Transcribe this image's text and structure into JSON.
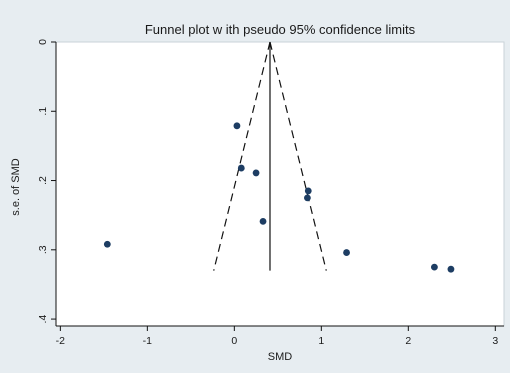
{
  "chart_data": {
    "type": "scatter",
    "title": "Funnel plot w ith pseudo 95% confidence limits",
    "xlabel": "SMD",
    "ylabel": "s.e. of SMD",
    "xlim": [
      -2.05,
      3.1
    ],
    "ylim": [
      0,
      0.41
    ],
    "y_reversed": true,
    "x_ticks": [
      -2,
      -1,
      0,
      1,
      2,
      3
    ],
    "x_tick_labels": [
      "-2",
      "-1",
      "0",
      "1",
      "2",
      "3"
    ],
    "y_ticks": [
      0,
      0.1,
      0.2,
      0.3,
      0.4
    ],
    "y_tick_labels": [
      "0",
      ".1",
      ".2",
      ".3",
      ".4"
    ],
    "grid": false,
    "pooled_effect": 0.41,
    "funnel_max_se": 0.33,
    "funnel_z": 1.96,
    "points": [
      {
        "x": 0.03,
        "y": 0.121
      },
      {
        "x": 0.08,
        "y": 0.182
      },
      {
        "x": 0.25,
        "y": 0.189
      },
      {
        "x": 0.33,
        "y": 0.259
      },
      {
        "x": 0.85,
        "y": 0.215
      },
      {
        "x": 0.84,
        "y": 0.225
      },
      {
        "x": 1.29,
        "y": 0.304
      },
      {
        "x": -1.46,
        "y": 0.292
      },
      {
        "x": 2.3,
        "y": 0.325
      },
      {
        "x": 2.49,
        "y": 0.328
      }
    ],
    "colors": {
      "background": "#e7edf1",
      "plot_area": "#ffffff",
      "marker": "#1d3d63",
      "lines": "#111111"
    }
  }
}
